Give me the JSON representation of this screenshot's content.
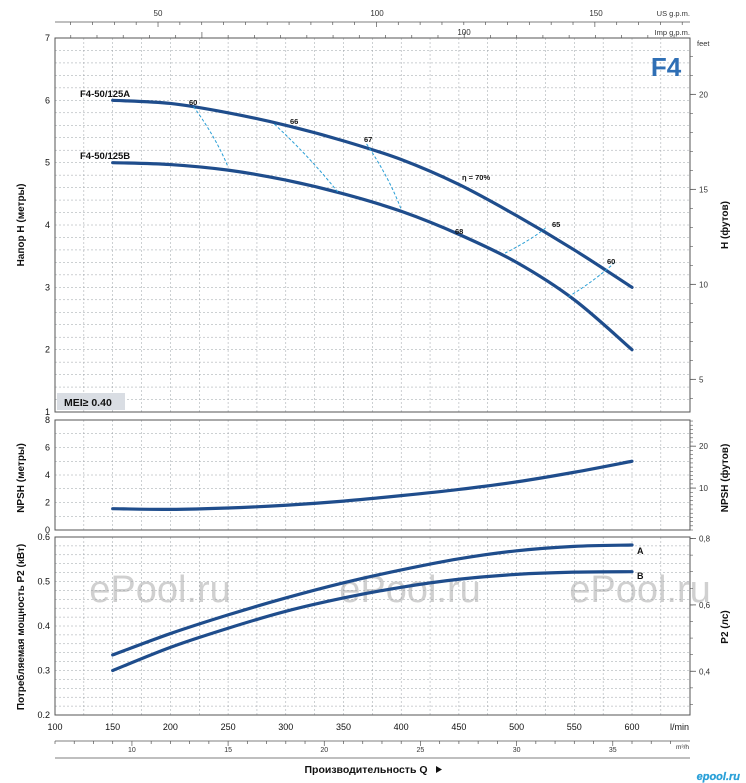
{
  "model": "F4",
  "colors": {
    "curve": "#1f4d8c",
    "eff": "#2a9fd6",
    "grid": "#9aa0a6",
    "badge_bg": "#d9dde3",
    "watermark": "#d0d0d0",
    "model": "#2f6fb5"
  },
  "top_axes": {
    "us_label": "US g.p.m.",
    "us_ticks": [
      "50",
      "100",
      "150"
    ],
    "imp_label": "Imp g.p.m.",
    "imp_ticks": [
      "100"
    ]
  },
  "panel1": {
    "ylabel": "Напор H (метры)",
    "y2label": "H (футов)",
    "y2unit": "feet",
    "ylim": [
      1,
      7
    ],
    "yticks": [
      "1",
      "2",
      "3",
      "4",
      "5",
      "6",
      "7"
    ],
    "y2ticks": [
      "5",
      "10",
      "15",
      "20"
    ],
    "badge": "MEI≥ 0.40",
    "curve_labels": [
      "F4-50/125A",
      "F4-50/125B"
    ],
    "eff_labels": [
      "60",
      "66",
      "67",
      "η = 70%",
      "65",
      "60",
      "68"
    ]
  },
  "panel2": {
    "ylabel": "NPSH (метры)",
    "y2label": "NPSH (футов)",
    "ylim": [
      0,
      8
    ],
    "yticks": [
      "0",
      "2",
      "4",
      "6",
      "8"
    ],
    "y2ticks": [
      "10",
      "20"
    ]
  },
  "panel3": {
    "ylabel": "Потребляемая мощность P2 (кВт)",
    "y2label": "P2 (лс)",
    "ylim": [
      0.2,
      0.6
    ],
    "yticks": [
      "0.2",
      "0.3",
      "0.4",
      "0.5",
      "0.6"
    ],
    "y2ticks": [
      "0,4",
      "0,6",
      "0,8"
    ],
    "series_labels": [
      "A",
      "B"
    ]
  },
  "x_axis": {
    "lmin_ticks": [
      "100",
      "150",
      "200",
      "250",
      "300",
      "350",
      "400",
      "450",
      "500",
      "550",
      "600"
    ],
    "lmin_unit": "l/min",
    "m3h_ticks": [
      "10",
      "15",
      "20",
      "25",
      "30",
      "35"
    ],
    "m3h_unit": "m³/h",
    "xlabel": "Производительность Q"
  },
  "watermarks": [
    "ePool.ru",
    "ePool.ru",
    "ePool.ru"
  ],
  "logo_text": "epool.ru",
  "chart_data": [
    {
      "type": "line",
      "title": "",
      "xlabel": "Производительность Q",
      "ylabel": "Напор H (метры)",
      "xlim": [
        100,
        650
      ],
      "ylim": [
        1,
        7
      ],
      "x_unit": "l/min",
      "series": [
        {
          "name": "F4-50/125A",
          "x": [
            150,
            200,
            250,
            300,
            350,
            400,
            450,
            500,
            550,
            600
          ],
          "values": [
            6.0,
            5.95,
            5.8,
            5.6,
            5.35,
            5.05,
            4.65,
            4.15,
            3.6,
            3.0
          ]
        },
        {
          "name": "F4-50/125B",
          "x": [
            150,
            200,
            250,
            300,
            350,
            400,
            450,
            500,
            550,
            600
          ],
          "values": [
            5.0,
            4.97,
            4.88,
            4.72,
            4.5,
            4.22,
            3.85,
            3.4,
            2.8,
            2.0
          ]
        }
      ],
      "efficiency_lines": [
        {
          "label": "60",
          "x": [
            220,
            250
          ],
          "values": [
            5.9,
            4.93
          ]
        },
        {
          "label": "66",
          "x": [
            290,
            345
          ],
          "values": [
            5.62,
            4.53
          ]
        },
        {
          "label": "67",
          "x": [
            370,
            400
          ],
          "values": [
            5.3,
            4.25
          ]
        },
        {
          "label": "65",
          "x": [
            525,
            490
          ],
          "values": [
            3.95,
            3.55
          ]
        },
        {
          "label": "60",
          "x": [
            585,
            545
          ],
          "values": [
            3.4,
            2.85
          ]
        }
      ],
      "point_labels": [
        {
          "label": "η = 70%",
          "x": 450,
          "y": 4.65
        },
        {
          "label": "68",
          "x": 450,
          "y": 3.9
        }
      ]
    },
    {
      "type": "line",
      "title": "",
      "ylabel": "NPSH (метры)",
      "xlim": [
        100,
        650
      ],
      "ylim": [
        0,
        8
      ],
      "series": [
        {
          "x": [
            150,
            200,
            250,
            300,
            350,
            400,
            450,
            500,
            550,
            600
          ],
          "values": [
            1.55,
            1.5,
            1.6,
            1.8,
            2.1,
            2.5,
            2.95,
            3.5,
            4.2,
            5.0
          ]
        }
      ]
    },
    {
      "type": "line",
      "title": "",
      "ylabel": "Потребляемая мощность P2 (кВт)",
      "xlim": [
        100,
        650
      ],
      "ylim": [
        0.2,
        0.6
      ],
      "series": [
        {
          "name": "A",
          "x": [
            150,
            200,
            250,
            300,
            350,
            400,
            450,
            500,
            550,
            600
          ],
          "values": [
            0.335,
            0.383,
            0.425,
            0.463,
            0.497,
            0.526,
            0.551,
            0.569,
            0.579,
            0.582
          ]
        },
        {
          "name": "B",
          "x": [
            150,
            200,
            250,
            300,
            350,
            400,
            450,
            500,
            550,
            600
          ],
          "values": [
            0.3,
            0.352,
            0.395,
            0.433,
            0.463,
            0.487,
            0.505,
            0.516,
            0.521,
            0.522
          ]
        }
      ]
    }
  ]
}
